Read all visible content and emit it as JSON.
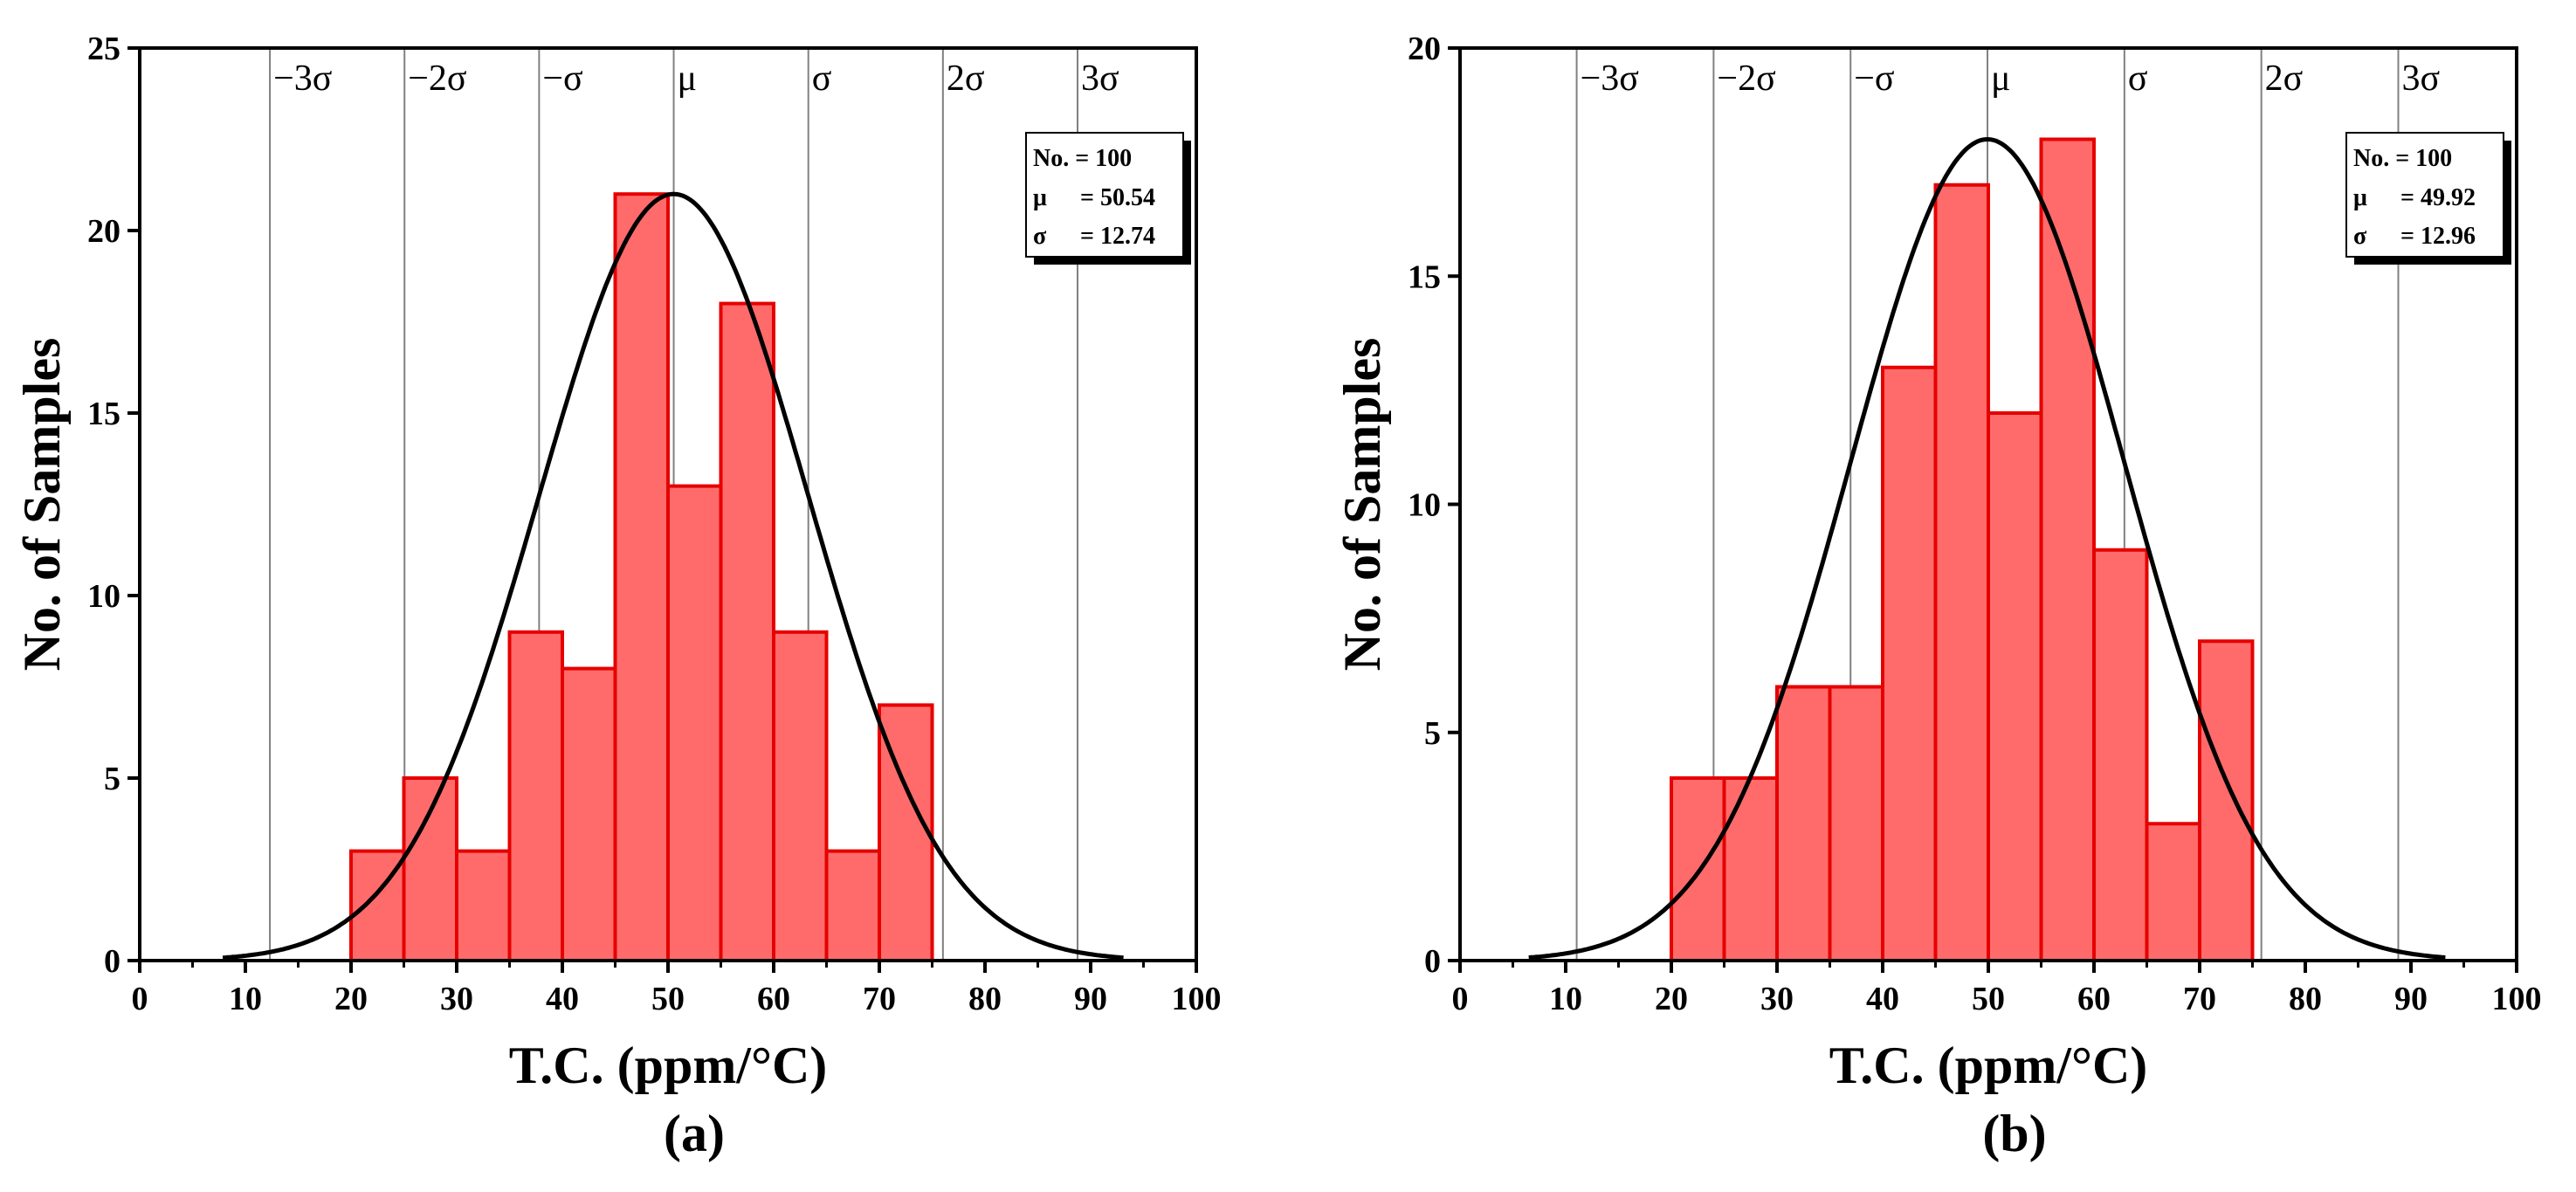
{
  "chart_data": [
    {
      "type": "bar",
      "panel": "(a)",
      "caption": "(a)",
      "xlabel": "T.C. (ppm/°C)",
      "ylabel": "No. of Samples",
      "xlim": [
        0,
        100
      ],
      "ylim": [
        0,
        25
      ],
      "xticks": [
        0,
        10,
        20,
        30,
        40,
        50,
        60,
        70,
        80,
        90,
        100
      ],
      "yticks": [
        0,
        5,
        10,
        15,
        20,
        25
      ],
      "bin_width": 5,
      "bin_starts": [
        20,
        25,
        30,
        35,
        40,
        45,
        50,
        55,
        60,
        65,
        70
      ],
      "values": [
        3,
        5,
        3,
        9,
        8,
        21,
        13,
        18,
        9,
        3,
        7
      ],
      "normal_curve": {
        "mean": 50.54,
        "sigma": 12.74,
        "peak": 21
      },
      "sigma_labels": [
        "−3σ",
        "−2σ",
        "−σ",
        "μ",
        "σ",
        "2σ",
        "3σ"
      ],
      "sigma_multipliers": [
        -3,
        -2,
        -1,
        0,
        1,
        2,
        3
      ],
      "stats": {
        "count_label": "No. = 100",
        "mu_label": "μ",
        "mu_value": "= 50.54",
        "sigma_label": "σ",
        "sigma_value": "= 12.74"
      },
      "colors": {
        "bar_fill": "#ff6b6b",
        "bar_edge": "#e60000",
        "curve": "#000000",
        "sigma_line": "#808080"
      }
    },
    {
      "type": "bar",
      "panel": "(b)",
      "caption": "(b)",
      "xlabel": "T.C. (ppm/°C)",
      "ylabel": "No. of Samples",
      "xlim": [
        0,
        100
      ],
      "ylim": [
        0,
        20
      ],
      "xticks": [
        0,
        10,
        20,
        30,
        40,
        50,
        60,
        70,
        80,
        90,
        100
      ],
      "yticks": [
        0,
        5,
        10,
        15,
        20
      ],
      "bin_width": 5,
      "bin_starts": [
        20,
        25,
        30,
        35,
        40,
        45,
        50,
        55,
        60,
        65,
        70
      ],
      "values": [
        4,
        4,
        6,
        6,
        13,
        17,
        12,
        18,
        9,
        3,
        7
      ],
      "normal_curve": {
        "mean": 49.92,
        "sigma": 12.96,
        "peak": 18
      },
      "sigma_labels": [
        "−3σ",
        "−2σ",
        "−σ",
        "μ",
        "σ",
        "2σ",
        "3σ"
      ],
      "sigma_multipliers": [
        -3,
        -2,
        -1,
        0,
        1,
        2,
        3
      ],
      "stats": {
        "count_label": "No. = 100",
        "mu_label": "μ",
        "mu_value": "= 49.92",
        "sigma_label": "σ",
        "sigma_value": "= 12.96"
      },
      "colors": {
        "bar_fill": "#ff6b6b",
        "bar_edge": "#e60000",
        "curve": "#000000",
        "sigma_line": "#808080"
      }
    }
  ]
}
